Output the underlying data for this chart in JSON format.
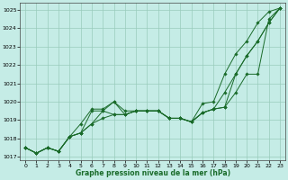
{
  "xlabel": "Graphe pression niveau de la mer (hPa)",
  "bg_color": "#c5ece6",
  "grid_color": "#99ccbb",
  "line_color": "#1a6b2a",
  "ylim": [
    1016.8,
    1025.4
  ],
  "xlim": [
    -0.5,
    23.5
  ],
  "yticks": [
    1017,
    1018,
    1019,
    1020,
    1021,
    1022,
    1023,
    1024,
    1025
  ],
  "xticks": [
    0,
    1,
    2,
    3,
    4,
    5,
    6,
    7,
    8,
    9,
    10,
    11,
    12,
    13,
    14,
    15,
    16,
    17,
    18,
    19,
    20,
    21,
    22,
    23
  ],
  "series": [
    [
      1017.5,
      1017.2,
      1017.5,
      1017.3,
      1018.1,
      1018.3,
      1019.5,
      1019.5,
      1020.0,
      1019.5,
      1019.5,
      1019.5,
      1019.5,
      1019.1,
      1019.1,
      1018.9,
      1019.4,
      1019.6,
      1019.7,
      1020.5,
      1021.5,
      1021.5,
      1024.5,
      1025.1
    ],
    [
      1017.5,
      1017.2,
      1017.5,
      1017.3,
      1018.1,
      1018.3,
      1018.8,
      1019.1,
      1019.3,
      1019.3,
      1019.5,
      1019.5,
      1019.5,
      1019.1,
      1019.1,
      1018.9,
      1019.4,
      1019.6,
      1019.7,
      1021.5,
      1022.5,
      1023.3,
      1024.3,
      1025.1
    ],
    [
      1017.5,
      1017.2,
      1017.5,
      1017.3,
      1018.1,
      1018.3,
      1018.8,
      1019.5,
      1019.3,
      1019.3,
      1019.5,
      1019.5,
      1019.5,
      1019.1,
      1019.1,
      1018.9,
      1019.4,
      1019.6,
      1020.5,
      1021.5,
      1022.5,
      1023.3,
      1024.3,
      1025.1
    ],
    [
      1017.5,
      1017.2,
      1017.5,
      1017.3,
      1018.1,
      1018.8,
      1019.6,
      1019.6,
      1020.0,
      1019.3,
      1019.5,
      1019.5,
      1019.5,
      1019.1,
      1019.1,
      1018.9,
      1019.9,
      1020.0,
      1021.5,
      1022.6,
      1023.3,
      1024.3,
      1024.9,
      1025.1
    ]
  ]
}
